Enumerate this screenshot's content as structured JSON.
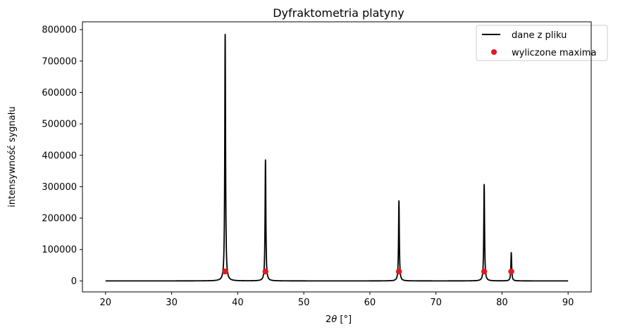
{
  "chart_data": {
    "type": "line",
    "title": "Dyfraktometria platyny",
    "xlabel": "2θ [°]",
    "ylabel": "intensywność sygnału",
    "xlim": [
      16.5,
      93.5
    ],
    "ylim": [
      -35000,
      825000
    ],
    "xticks": [
      20,
      30,
      40,
      50,
      60,
      70,
      80,
      90
    ],
    "yticks": [
      0,
      100000,
      200000,
      300000,
      400000,
      500000,
      600000,
      700000,
      800000
    ],
    "grid": false,
    "legend_position": "top-right",
    "x_range": [
      20,
      90
    ],
    "baseline": 0,
    "series": [
      {
        "name": "dane z pliku",
        "style": "line",
        "color": "#000000",
        "peaks": [
          {
            "x": 38.1,
            "y": 785000
          },
          {
            "x": 44.2,
            "y": 385000
          },
          {
            "x": 64.4,
            "y": 255000
          },
          {
            "x": 77.3,
            "y": 307000
          },
          {
            "x": 81.4,
            "y": 90000
          }
        ]
      },
      {
        "name": "wyliczone maxima",
        "style": "scatter",
        "color": "#e31a1c",
        "points": [
          {
            "x": 38.1,
            "y": 30000
          },
          {
            "x": 44.2,
            "y": 30000
          },
          {
            "x": 64.4,
            "y": 30000
          },
          {
            "x": 77.3,
            "y": 30000
          },
          {
            "x": 81.4,
            "y": 30000
          }
        ]
      }
    ]
  }
}
